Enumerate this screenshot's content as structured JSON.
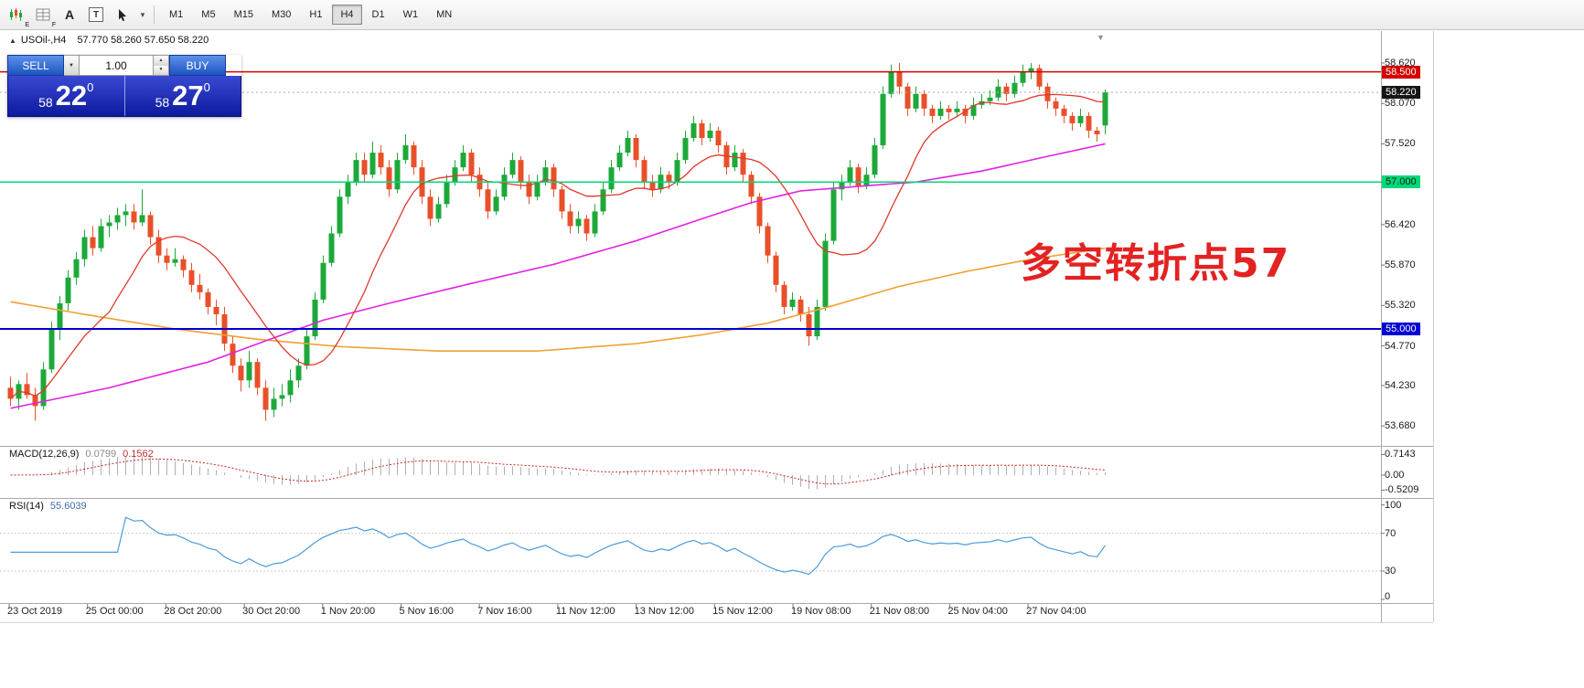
{
  "toolbar": {
    "timeframes": [
      "M1",
      "M5",
      "M15",
      "M30",
      "H1",
      "H4",
      "D1",
      "W1",
      "MN"
    ],
    "selected_timeframe": "H4",
    "charts_icon_badge": "E",
    "profiles_icon_badge": "F",
    "text_tool_label": "A",
    "label_tool_label": "T",
    "cursor_dropdown_icon": "▾"
  },
  "chart": {
    "collapse_icon": "▲",
    "symbol_period": "USOil-,H4",
    "ohlc": "57.770 58.260 57.650 58.220",
    "annotation": "多空转折点57",
    "shift_marker_icon": "▼"
  },
  "trade_panel": {
    "sell_label": "SELL",
    "buy_label": "BUY",
    "volume": "1.00",
    "dropdown_icon": "▼",
    "spin_up_icon": "▲",
    "spin_down_icon": "▼",
    "sell_price": {
      "small": "58",
      "main": "22",
      "sup": "0"
    },
    "buy_price": {
      "small": "58",
      "main": "27",
      "sup": "0"
    }
  },
  "price_axis": {
    "labels": [
      {
        "text": "58.620",
        "price": 58.62
      },
      {
        "text": "58.500",
        "price": 58.5,
        "bg": "#d40000",
        "fg": "#ffffff"
      },
      {
        "text": "58.220",
        "price": 58.22,
        "bg": "#151515",
        "fg": "#ffffff"
      },
      {
        "text": "58.070",
        "price": 58.07
      },
      {
        "text": "57.520",
        "price": 57.52
      },
      {
        "text": "57.000",
        "price": 57.0,
        "bg": "#00d878",
        "fg": "#102010"
      },
      {
        "text": "56.420",
        "price": 56.42
      },
      {
        "text": "55.870",
        "price": 55.87
      },
      {
        "text": "55.320",
        "price": 55.32
      },
      {
        "text": "55.000",
        "price": 55.0,
        "bg": "#0000d2",
        "fg": "#ffffff"
      },
      {
        "text": "54.770",
        "price": 54.77
      },
      {
        "text": "54.230",
        "price": 54.23
      },
      {
        "text": "53.680",
        "price": 53.68
      }
    ]
  },
  "indicators": {
    "macd": {
      "name": "MACD(12,26,9)",
      "main_value": "0.0799",
      "signal_value": "0.1562",
      "axis": [
        {
          "text": "0.7143",
          "value": 0.7143
        },
        {
          "text": "0.00",
          "value": 0
        },
        {
          "text": "-0.5209",
          "value": -0.5209
        }
      ]
    },
    "rsi": {
      "name": "RSI(14)",
      "value": "55.6039",
      "axis": [
        {
          "text": "100",
          "value": 100
        },
        {
          "text": "70",
          "value": 70
        },
        {
          "text": "30",
          "value": 30
        },
        {
          "text": "0",
          "value": 0
        }
      ]
    }
  },
  "time_axis": [
    "23 Oct 2019",
    "25 Oct 00:00",
    "28 Oct 20:00",
    "30 Oct 20:00",
    "1 Nov 20:00",
    "5 Nov 16:00",
    "7 Nov 16:00",
    "11 Nov 12:00",
    "13 Nov 12:00",
    "15 Nov 12:00",
    "19 Nov 08:00",
    "21 Nov 08:00",
    "25 Nov 04:00",
    "27 Nov 04:00"
  ],
  "chart_data": {
    "type": "candlestick",
    "title": "USOil-,H4",
    "current_ohlc": [
      57.77,
      58.26,
      57.65,
      58.22
    ],
    "y_axis_range": [
      53.51,
      58.88
    ],
    "up_color": "#1ca93a",
    "down_color": "#e8502a",
    "horizontal_lines": [
      {
        "price": 58.5,
        "color": "#d40000"
      },
      {
        "price": 57.0,
        "color": "#00d878"
      },
      {
        "price": 55.0,
        "color": "#0000d2"
      }
    ],
    "bid_line": {
      "price": 58.22,
      "color": "#aaaaaa"
    },
    "moving_averages": {
      "fast": {
        "type": "sma",
        "period": 13,
        "color": "#e0392b"
      },
      "mid": {
        "color": "#e321e3",
        "anchors": [
          [
            0,
            53.92
          ],
          [
            12,
            54.2
          ],
          [
            24,
            54.55
          ],
          [
            32,
            54.88
          ],
          [
            38,
            55.12
          ],
          [
            46,
            55.35
          ],
          [
            56,
            55.62
          ],
          [
            66,
            55.88
          ],
          [
            76,
            56.2
          ],
          [
            84,
            56.5
          ],
          [
            90,
            56.72
          ],
          [
            96,
            56.88
          ],
          [
            104,
            56.95
          ],
          [
            110,
            57.0
          ],
          [
            118,
            57.15
          ],
          [
            126,
            57.35
          ],
          [
            133,
            57.52
          ]
        ]
      },
      "slow": {
        "color": "#f0a132",
        "anchors": [
          [
            0,
            55.37
          ],
          [
            10,
            55.18
          ],
          [
            20,
            55.0
          ],
          [
            30,
            54.86
          ],
          [
            40,
            54.76
          ],
          [
            52,
            54.7
          ],
          [
            64,
            54.7
          ],
          [
            76,
            54.8
          ],
          [
            84,
            54.92
          ],
          [
            92,
            55.08
          ],
          [
            100,
            55.32
          ],
          [
            108,
            55.58
          ],
          [
            116,
            55.78
          ],
          [
            124,
            55.95
          ],
          [
            133,
            56.1
          ]
        ]
      }
    },
    "macd": {
      "fast": 12,
      "slow": 26,
      "signal": 9,
      "bar_color": "#b0b0b0",
      "signal_color": "#cc2222"
    },
    "rsi": {
      "period": 14,
      "levels": [
        70,
        30
      ],
      "line_color": "#4b9bdc"
    },
    "candles": [
      [
        54.2,
        54.35,
        53.95,
        54.05
      ],
      [
        54.05,
        54.3,
        53.9,
        54.25
      ],
      [
        54.25,
        54.4,
        54.05,
        54.1
      ],
      [
        54.1,
        54.2,
        53.75,
        53.95
      ],
      [
        53.95,
        54.55,
        53.9,
        54.45
      ],
      [
        54.45,
        55.1,
        54.4,
        55.0
      ],
      [
        55.0,
        55.45,
        54.85,
        55.35
      ],
      [
        55.35,
        55.8,
        55.25,
        55.7
      ],
      [
        55.7,
        56.05,
        55.6,
        55.95
      ],
      [
        55.95,
        56.35,
        55.85,
        56.25
      ],
      [
        56.25,
        56.4,
        56.0,
        56.1
      ],
      [
        56.1,
        56.5,
        56.05,
        56.4
      ],
      [
        56.4,
        56.55,
        56.25,
        56.45
      ],
      [
        56.45,
        56.65,
        56.35,
        56.55
      ],
      [
        56.55,
        56.7,
        56.4,
        56.6
      ],
      [
        56.6,
        56.7,
        56.35,
        56.45
      ],
      [
        56.45,
        56.9,
        56.4,
        56.55
      ],
      [
        56.55,
        56.6,
        56.15,
        56.25
      ],
      [
        56.25,
        56.35,
        55.9,
        56.0
      ],
      [
        56.0,
        56.1,
        55.8,
        55.9
      ],
      [
        55.9,
        56.1,
        55.85,
        55.95
      ],
      [
        55.95,
        56.0,
        55.7,
        55.8
      ],
      [
        55.8,
        55.9,
        55.5,
        55.6
      ],
      [
        55.6,
        55.75,
        55.4,
        55.5
      ],
      [
        55.5,
        55.55,
        55.2,
        55.3
      ],
      [
        55.3,
        55.4,
        55.05,
        55.2
      ],
      [
        55.2,
        55.3,
        54.7,
        54.8
      ],
      [
        54.8,
        54.9,
        54.4,
        54.5
      ],
      [
        54.5,
        54.6,
        54.15,
        54.3
      ],
      [
        54.3,
        54.7,
        54.2,
        54.55
      ],
      [
        54.55,
        54.6,
        54.1,
        54.2
      ],
      [
        54.2,
        54.3,
        53.75,
        53.9
      ],
      [
        53.9,
        54.2,
        53.8,
        54.05
      ],
      [
        54.05,
        54.25,
        53.95,
        54.1
      ],
      [
        54.1,
        54.45,
        54.0,
        54.3
      ],
      [
        54.3,
        54.6,
        54.2,
        54.5
      ],
      [
        54.5,
        55.0,
        54.45,
        54.9
      ],
      [
        54.9,
        55.5,
        54.85,
        55.4
      ],
      [
        55.4,
        56.0,
        55.35,
        55.9
      ],
      [
        55.9,
        56.4,
        55.85,
        56.3
      ],
      [
        56.3,
        56.9,
        56.25,
        56.8
      ],
      [
        56.8,
        57.1,
        56.7,
        57.0
      ],
      [
        57.0,
        57.4,
        56.95,
        57.3
      ],
      [
        57.3,
        57.4,
        57.0,
        57.1
      ],
      [
        57.1,
        57.55,
        57.05,
        57.4
      ],
      [
        57.4,
        57.5,
        57.1,
        57.2
      ],
      [
        57.2,
        57.3,
        56.8,
        56.9
      ],
      [
        56.9,
        57.4,
        56.85,
        57.3
      ],
      [
        57.3,
        57.65,
        57.25,
        57.5
      ],
      [
        57.5,
        57.55,
        57.1,
        57.2
      ],
      [
        57.2,
        57.3,
        56.7,
        56.8
      ],
      [
        56.8,
        56.9,
        56.4,
        56.5
      ],
      [
        56.5,
        56.8,
        56.45,
        56.7
      ],
      [
        56.7,
        57.1,
        56.65,
        57.0
      ],
      [
        57.0,
        57.3,
        56.95,
        57.2
      ],
      [
        57.2,
        57.5,
        57.15,
        57.4
      ],
      [
        57.4,
        57.45,
        57.0,
        57.1
      ],
      [
        57.1,
        57.2,
        56.8,
        56.9
      ],
      [
        56.9,
        57.0,
        56.5,
        56.6
      ],
      [
        56.6,
        56.9,
        56.55,
        56.8
      ],
      [
        56.8,
        57.2,
        56.75,
        57.1
      ],
      [
        57.1,
        57.4,
        57.05,
        57.3
      ],
      [
        57.3,
        57.35,
        56.9,
        57.0
      ],
      [
        57.0,
        57.1,
        56.7,
        56.8
      ],
      [
        56.8,
        57.1,
        56.75,
        57.0
      ],
      [
        57.0,
        57.3,
        56.95,
        57.2
      ],
      [
        57.2,
        57.25,
        56.8,
        56.9
      ],
      [
        56.9,
        56.95,
        56.5,
        56.6
      ],
      [
        56.6,
        56.7,
        56.3,
        56.4
      ],
      [
        56.4,
        56.6,
        56.3,
        56.5
      ],
      [
        56.5,
        56.55,
        56.2,
        56.3
      ],
      [
        56.3,
        56.7,
        56.25,
        56.6
      ],
      [
        56.6,
        57.0,
        56.55,
        56.9
      ],
      [
        56.9,
        57.3,
        56.85,
        57.2
      ],
      [
        57.2,
        57.5,
        57.15,
        57.4
      ],
      [
        57.4,
        57.7,
        57.35,
        57.6
      ],
      [
        57.6,
        57.65,
        57.2,
        57.3
      ],
      [
        57.3,
        57.35,
        56.9,
        57.0
      ],
      [
        57.0,
        57.1,
        56.8,
        56.9
      ],
      [
        56.9,
        57.2,
        56.85,
        57.1
      ],
      [
        57.1,
        57.15,
        56.9,
        57.0
      ],
      [
        57.0,
        57.4,
        56.95,
        57.3
      ],
      [
        57.3,
        57.7,
        57.25,
        57.6
      ],
      [
        57.6,
        57.9,
        57.55,
        57.8
      ],
      [
        57.8,
        57.85,
        57.5,
        57.6
      ],
      [
        57.6,
        57.8,
        57.55,
        57.7
      ],
      [
        57.7,
        57.75,
        57.4,
        57.5
      ],
      [
        57.5,
        57.55,
        57.1,
        57.2
      ],
      [
        57.2,
        57.5,
        57.15,
        57.4
      ],
      [
        57.4,
        57.45,
        57.0,
        57.1
      ],
      [
        57.1,
        57.15,
        56.7,
        56.8
      ],
      [
        56.8,
        56.85,
        56.3,
        56.4
      ],
      [
        56.4,
        56.45,
        55.9,
        56.0
      ],
      [
        56.0,
        56.05,
        55.5,
        55.6
      ],
      [
        55.6,
        55.65,
        55.2,
        55.3
      ],
      [
        55.3,
        55.5,
        55.25,
        55.4
      ],
      [
        55.4,
        55.45,
        55.1,
        55.2
      ],
      [
        55.2,
        55.3,
        54.77,
        54.9
      ],
      [
        54.9,
        55.4,
        54.85,
        55.3
      ],
      [
        55.3,
        56.3,
        55.25,
        56.2
      ],
      [
        56.2,
        57.0,
        56.15,
        56.9
      ],
      [
        56.9,
        57.1,
        56.75,
        57.0
      ],
      [
        57.0,
        57.3,
        56.95,
        57.2
      ],
      [
        57.2,
        57.25,
        56.85,
        56.95
      ],
      [
        56.95,
        57.2,
        56.9,
        57.1
      ],
      [
        57.1,
        57.6,
        57.05,
        57.5
      ],
      [
        57.5,
        58.3,
        57.45,
        58.2
      ],
      [
        58.2,
        58.6,
        58.15,
        58.5
      ],
      [
        58.5,
        58.62,
        58.2,
        58.3
      ],
      [
        58.3,
        58.35,
        57.9,
        58.0
      ],
      [
        58.0,
        58.3,
        57.95,
        58.2
      ],
      [
        58.2,
        58.25,
        57.9,
        58.0
      ],
      [
        58.0,
        58.05,
        57.8,
        57.9
      ],
      [
        57.9,
        58.1,
        57.85,
        58.0
      ],
      [
        58.0,
        58.05,
        57.85,
        57.95
      ],
      [
        57.95,
        58.1,
        57.9,
        58.0
      ],
      [
        58.0,
        58.05,
        57.8,
        57.9
      ],
      [
        57.9,
        58.15,
        57.85,
        58.05
      ],
      [
        58.05,
        58.2,
        58.0,
        58.1
      ],
      [
        58.1,
        58.25,
        58.05,
        58.15
      ],
      [
        58.15,
        58.4,
        58.1,
        58.3
      ],
      [
        58.3,
        58.35,
        58.1,
        58.2
      ],
      [
        58.2,
        58.45,
        58.15,
        58.35
      ],
      [
        58.35,
        58.6,
        58.3,
        58.5
      ],
      [
        58.5,
        58.62,
        58.4,
        58.55
      ],
      [
        58.55,
        58.6,
        58.25,
        58.3
      ],
      [
        58.3,
        58.35,
        58.0,
        58.1
      ],
      [
        58.1,
        58.15,
        57.9,
        58.0
      ],
      [
        58.0,
        58.05,
        57.8,
        57.9
      ],
      [
        57.9,
        57.95,
        57.7,
        57.8
      ],
      [
        57.8,
        58.0,
        57.75,
        57.9
      ],
      [
        57.9,
        57.95,
        57.6,
        57.7
      ],
      [
        57.7,
        57.75,
        57.55,
        57.65
      ],
      [
        57.77,
        58.26,
        57.65,
        58.22
      ]
    ]
  }
}
